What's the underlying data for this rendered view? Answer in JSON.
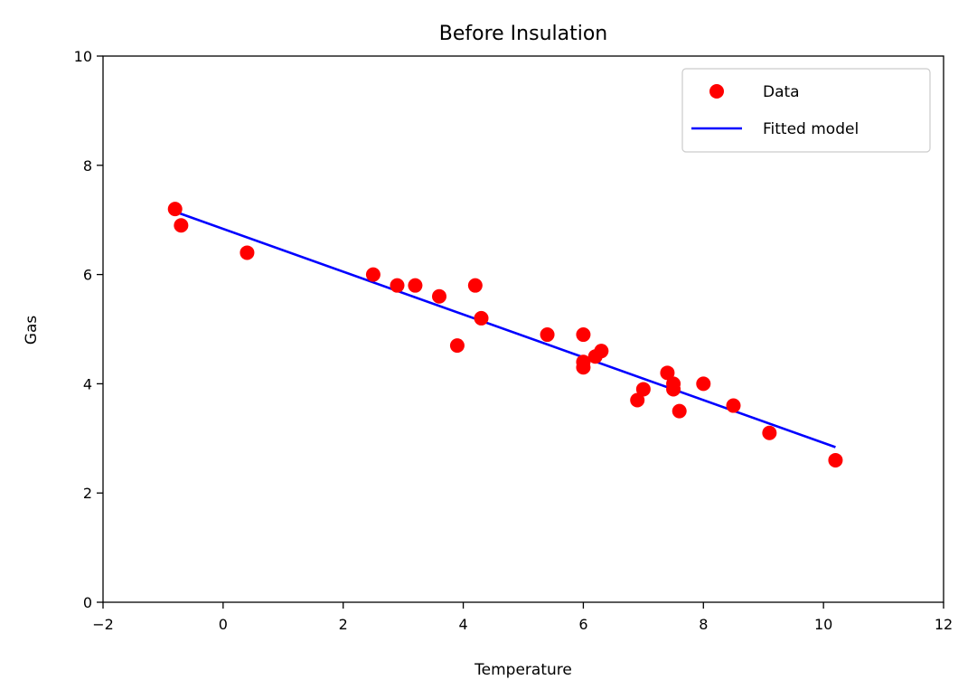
{
  "chart_data": {
    "type": "scatter",
    "title": "Before Insulation",
    "xlabel": "Temperature",
    "ylabel": "Gas",
    "xlim": [
      -2,
      12
    ],
    "ylim": [
      0,
      10
    ],
    "xticks": [
      "−2",
      "0",
      "2",
      "4",
      "6",
      "8",
      "10",
      "12"
    ],
    "yticks": [
      "0",
      "2",
      "4",
      "6",
      "8",
      "10"
    ],
    "xtick_values": [
      -2,
      0,
      2,
      4,
      6,
      8,
      10,
      12
    ],
    "ytick_values": [
      0,
      2,
      4,
      6,
      8,
      10
    ],
    "grid": false,
    "legend_position": "top-right",
    "series": [
      {
        "name": "Data",
        "kind": "scatter",
        "color": "#ff0000",
        "points": [
          [
            -0.8,
            7.2
          ],
          [
            -0.7,
            6.9
          ],
          [
            0.4,
            6.4
          ],
          [
            2.5,
            6.0
          ],
          [
            2.9,
            5.8
          ],
          [
            3.2,
            5.8
          ],
          [
            3.6,
            5.6
          ],
          [
            3.9,
            4.7
          ],
          [
            4.2,
            5.8
          ],
          [
            4.3,
            5.2
          ],
          [
            5.4,
            4.9
          ],
          [
            6.0,
            4.9
          ],
          [
            6.0,
            4.4
          ],
          [
            6.0,
            4.3
          ],
          [
            6.2,
            4.5
          ],
          [
            6.3,
            4.6
          ],
          [
            6.9,
            3.7
          ],
          [
            7.0,
            3.9
          ],
          [
            7.4,
            4.2
          ],
          [
            7.5,
            4.0
          ],
          [
            7.5,
            3.9
          ],
          [
            7.6,
            3.5
          ],
          [
            8.0,
            4.0
          ],
          [
            8.5,
            3.6
          ],
          [
            9.1,
            3.1
          ],
          [
            10.2,
            2.6
          ]
        ]
      },
      {
        "name": "Fitted model",
        "kind": "line",
        "color": "#0000ff",
        "points": [
          [
            -0.8,
            7.15
          ],
          [
            10.2,
            2.84
          ]
        ]
      }
    ]
  }
}
